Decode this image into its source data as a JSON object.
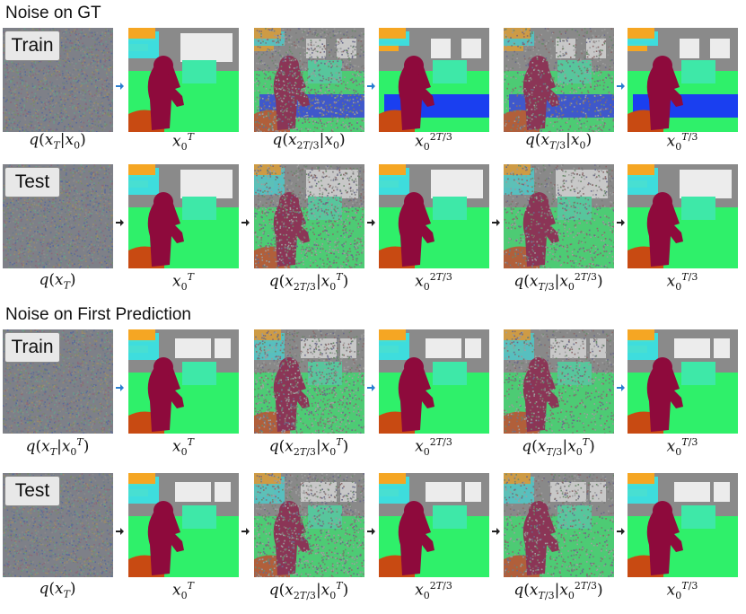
{
  "sections": [
    {
      "title": "Noise on GT"
    },
    {
      "title": "Noise on First Prediction"
    }
  ],
  "rows": [
    {
      "tag": "Train",
      "arrow_color": "#2a7fd0",
      "captions": [
        "q(x_T|x_0)",
        "x_0^T",
        "q(x_{2T/3}|x_0)",
        "x_0^{2T/3}",
        "q(x_{T/3}|x_0)",
        "x_0^{T/3}"
      ]
    },
    {
      "tag": "Test",
      "arrow_color": "#222222",
      "captions": [
        "q(x_T)",
        "x_0^T",
        "q(x_{2T/3}|x_0^T)",
        "x_0^{2T/3}",
        "q(x_{T/3}|x_0^{2T/3})",
        "x_0^{T/3}"
      ]
    },
    {
      "tag": "Train",
      "arrow_color": "#2a7fd0",
      "captions": [
        "q(x_T|x_0^T)",
        "x_0^T",
        "q(x_{2T/3}|x_0^T)",
        "x_0^{2T/3}",
        "q(x_{T/3}|x_0^T)",
        "x_0^{T/3}"
      ]
    },
    {
      "tag": "Test",
      "arrow_color": "#222222",
      "captions": [
        "q(x_T)",
        "x_0^T",
        "q(x_{2T/3}|x_0^T)",
        "x_0^{2T/3}",
        "q(x_{T/3}|x_0^{2T/3})",
        "x_0^{T/3}"
      ]
    }
  ],
  "colors": {
    "background": "#7d7d7d",
    "wall": "#8a8a8a",
    "cabinet": "#f5a623",
    "cyan": "#35e6e6",
    "white": "#ececec",
    "green": "#2ff06a",
    "mint": "#3ee8a8",
    "person": "#8e0a3c",
    "chair": "#c84a12",
    "table": "#1a3ff0"
  }
}
